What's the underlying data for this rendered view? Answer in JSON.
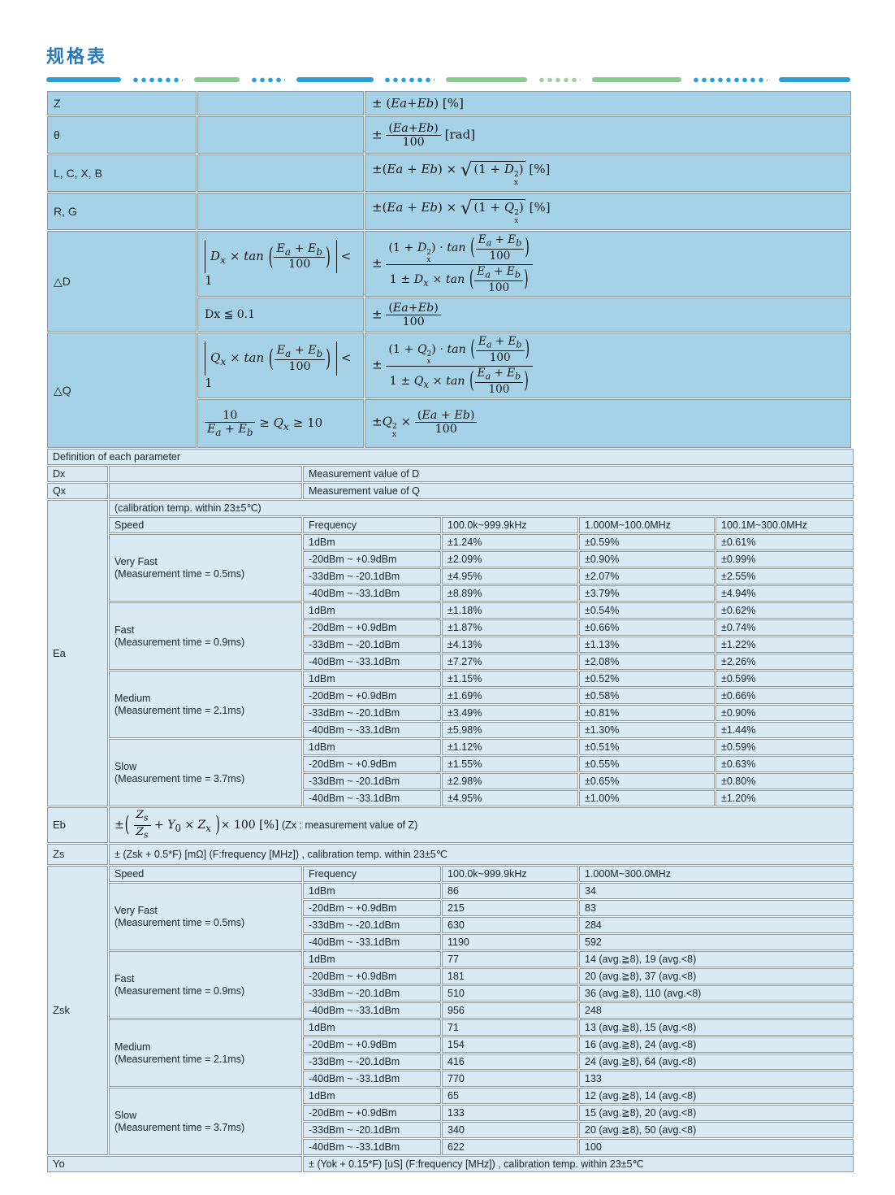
{
  "header": {
    "title": "规格表"
  },
  "colors": {
    "title_blue": "#2878ba",
    "accent_blue": "#2b9ed8",
    "accent_green": "#8cc98c",
    "cell_blue_dark": "#a6d2e8",
    "cell_blue_light": "#d9eaf4",
    "border_gray": "#8d9aa6"
  },
  "top": {
    "z": {
      "label": "Z",
      "formula": "± (<i>Ea</i>+<i>Eb</i>) [%]"
    },
    "theta": {
      "label": "θ",
      "formula": "± <span class='fr'><span class='n'>(<i>Ea</i>+<i>Eb</i>)</span><span class='d'>100</span></span> [rad]"
    },
    "lcxb": {
      "label": "L, C, X, B",
      "formula": "±(<i>Ea</i> + <i>Eb</i>) × <span class='rt'>√</span><span class='rb'>(1 + <i>D</i><span class='ss'><sup>2</sup><sub>x</sub></span>)</span> [%]"
    },
    "rg": {
      "label": "R, G",
      "formula": "±(<i>Ea</i> + <i>Eb</i>) × <span class='rt'>√</span><span class='rb'>(1 + <i>Q</i><span class='ss'><sup>2</sup><sub>x</sub></span>)</span> [%]"
    },
    "dd": {
      "label": "△D",
      "cond1": "<span class='abs'><i>D<sub>x</sub></i> × <i>tan</i> <span class='bp'>(</span><span class='fr'><span class='n'><i>E<sub>a</sub></i> + <i>E<sub>b</sub></i></span><span class='d'>100</span></span><span class='bp'>)</span></span> &lt; 1",
      "f1": "± <span class='fr'><span class='n'>(1 + <i>D</i><span class='ss'><sup>2</sup><sub>x</sub></span>) · <i>tan</i> <span class='bp'>(</span><span class='fr'><span class='n'><i>E<sub>a</sub></i> + <i>E<sub>b</sub></i></span><span class='d'>100</span></span><span class='bp'>)</span></span><span class='d'>1 ± <i>D<sub>x</sub></i> × <i>tan</i> <span class='bp'>(</span><span class='fr'><span class='n'><i>E<sub>a</sub></i> + <i>E<sub>b</sub></i></span><span class='d'>100</span></span><span class='bp'>)</span></span></span>",
      "cond2": "Dx ≦ 0.1",
      "f2": "± <span class='fr'><span class='n'>(<i>Ea</i>+<i>Eb</i>)</span><span class='d'>100</span></span>"
    },
    "dq": {
      "label": "△Q",
      "cond1": "<span class='abs'><i>Q<sub>x</sub></i> × <i>tan</i> <span class='bp'>(</span><span class='fr'><span class='n'><i>E<sub>a</sub></i> + <i>E<sub>b</sub></i></span><span class='d'>100</span></span><span class='bp'>)</span></span> &lt; 1",
      "f1": "± <span class='fr'><span class='n'>(1 + <i>Q</i><span class='ss'><sup>2</sup><sub>x</sub></span>) · <i>tan</i> <span class='bp'>(</span><span class='fr'><span class='n'><i>E<sub>a</sub></i> + <i>E<sub>b</sub></i></span><span class='d'>100</span></span><span class='bp'>)</span></span><span class='d'>1 ± <i>Q<sub>x</sub></i> × <i>tan</i> <span class='bp'>(</span><span class='fr'><span class='n'><i>E<sub>a</sub></i> + <i>E<sub>b</sub></i></span><span class='d'>100</span></span><span class='bp'>)</span></span></span>",
      "cond2": "<span class='fr'><span class='n'>10</span><span class='d'><i>E<sub>a</sub></i> + <i>E<sub>b</sub></i></span></span> ≥ <i>Q<sub>x</sub></i> ≥ 10",
      "f2": "±<i>Q</i><span class='ss'><sup>2</sup><sub>x</sub></span> × <span class='fr'><span class='n'>(<i>Ea</i> + <i>Eb</i>)</span><span class='d'>100</span></span>"
    }
  },
  "definition": {
    "title": "Definition of each parameter",
    "dx_label": "Dx",
    "dx_desc": "Measurement value of D",
    "qx_label": "Qx",
    "qx_desc": "Measurement value of Q"
  },
  "ea": {
    "label": "Ea",
    "note": "(calibration temp. within 23±5℃)",
    "headers": [
      "Speed",
      "Frequency",
      "100.0k~999.9kHz",
      "1.000M~100.0MHz",
      "100.1M~300.0MHz"
    ],
    "groups": [
      {
        "speed": "Very Fast",
        "time": "(Measurement time = 0.5ms)",
        "rows": [
          [
            "1dBm",
            "±1.24%",
            "±0.59%",
            "±0.61%"
          ],
          [
            "-20dBm ~ +0.9dBm",
            "±2.09%",
            "±0.90%",
            "±0.99%"
          ],
          [
            "-33dBm ~ -20.1dBm",
            "±4.95%",
            "±2.07%",
            "±2.55%"
          ],
          [
            "-40dBm ~ -33.1dBm",
            "±8.89%",
            "±3.79%",
            "±4.94%"
          ]
        ]
      },
      {
        "speed": "Fast",
        "time": "(Measurement time = 0.9ms)",
        "rows": [
          [
            "1dBm",
            "±1.18%",
            "±0.54%",
            "±0.62%"
          ],
          [
            "-20dBm ~ +0.9dBm",
            "±1.87%",
            "±0.66%",
            "±0.74%"
          ],
          [
            "-33dBm ~ -20.1dBm",
            "±4.13%",
            "±1.13%",
            "±1.22%"
          ],
          [
            "-40dBm ~ -33.1dBm",
            "±7.27%",
            "±2.08%",
            "±2.26%"
          ]
        ]
      },
      {
        "speed": "Medium",
        "time": "(Measurement time = 2.1ms)",
        "rows": [
          [
            "1dBm",
            "±1.15%",
            "±0.52%",
            "±0.59%"
          ],
          [
            "-20dBm ~ +0.9dBm",
            "±1.69%",
            "±0.58%",
            "±0.66%"
          ],
          [
            "-33dBm ~ -20.1dBm",
            "±3.49%",
            "±0.81%",
            "±0.90%"
          ],
          [
            "-40dBm ~ -33.1dBm",
            "±5.98%",
            "±1.30%",
            "±1.44%"
          ]
        ]
      },
      {
        "speed": "Slow",
        "time": "(Measurement time = 3.7ms)",
        "rows": [
          [
            "1dBm",
            "±1.12%",
            "±0.51%",
            "±0.59%"
          ],
          [
            "-20dBm ~ +0.9dBm",
            "±1.55%",
            "±0.55%",
            "±0.63%"
          ],
          [
            "-33dBm ~ -20.1dBm",
            "±2.98%",
            "±0.65%",
            "±0.80%"
          ],
          [
            "-40dBm ~ -33.1dBm",
            "±4.95%",
            "±1.00%",
            "±1.20%"
          ]
        ]
      }
    ]
  },
  "eb": {
    "label": "Eb",
    "formula": "±<span class='bp'>(</span> <span class='fr'><span class='n'><i>Z<sub>s</sub></i></span><span class='d'><i>Z<sub>s</sub></i></span></span> + <i>Y</i><sub>0</sub> × <i>Z<sub>x</sub></i> <span class='bp'>)</span>× 100 [%]",
    "note": "(Zx : measurement value of Z)"
  },
  "zs": {
    "label": "Zs",
    "text": "± (Zsk + 0.5*F) [mΩ] (F:frequency [MHz]) , calibration temp. within 23±5℃"
  },
  "zsk": {
    "label": "Zsk",
    "headers": [
      "Speed",
      "Frequency",
      "100.0k~999.9kHz",
      "1.000M~300.0MHz"
    ],
    "groups": [
      {
        "speed": "Very Fast",
        "time": "(Measurement time = 0.5ms)",
        "rows": [
          [
            "1dBm",
            "86",
            "34"
          ],
          [
            "-20dBm ~ +0.9dBm",
            "215",
            "83"
          ],
          [
            "-33dBm ~ -20.1dBm",
            "630",
            "284"
          ],
          [
            "-40dBm ~ -33.1dBm",
            "1190",
            "592"
          ]
        ]
      },
      {
        "speed": "Fast",
        "time": "(Measurement time = 0.9ms)",
        "rows": [
          [
            "1dBm",
            "77",
            "14 (avg.≧8), 19 (avg.<8)"
          ],
          [
            "-20dBm ~ +0.9dBm",
            "181",
            "20 (avg.≧8), 37 (avg.<8)"
          ],
          [
            "-33dBm ~ -20.1dBm",
            "510",
            "36 (avg.≧8), 110 (avg.<8)"
          ],
          [
            "-40dBm ~ -33.1dBm",
            "956",
            "248"
          ]
        ]
      },
      {
        "speed": "Medium",
        "time": "(Measurement time = 2.1ms)",
        "rows": [
          [
            "1dBm",
            "71",
            "13 (avg.≧8), 15 (avg.<8)"
          ],
          [
            "-20dBm ~ +0.9dBm",
            "154",
            "16 (avg.≧8), 24 (avg.<8)"
          ],
          [
            "-33dBm ~ -20.1dBm",
            "416",
            "24 (avg.≧8), 64 (avg.<8)"
          ],
          [
            "-40dBm ~ -33.1dBm",
            "770",
            "133"
          ]
        ]
      },
      {
        "speed": "Slow",
        "time": "(Measurement time = 3.7ms)",
        "rows": [
          [
            "1dBm",
            "65",
            "12 (avg.≧8), 14 (avg.<8)"
          ],
          [
            "-20dBm ~ +0.9dBm",
            "133",
            "15 (avg.≧8), 20 (avg.<8)"
          ],
          [
            "-33dBm ~ -20.1dBm",
            "340",
            "20 (avg.≧8), 50 (avg.<8)"
          ],
          [
            "-40dBm ~ -33.1dBm",
            "622",
            "100"
          ]
        ]
      }
    ]
  },
  "yo": {
    "label": "Yo",
    "text": "± (Yok + 0.15*F) [uS] (F:frequency [MHz]) , calibration temp. within 23±5℃"
  }
}
